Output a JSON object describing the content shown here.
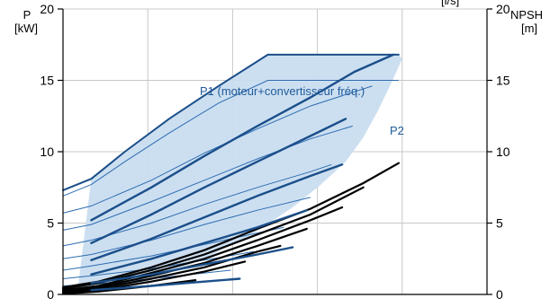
{
  "chart_data": {
    "type": "line",
    "title": "",
    "top_right_fragment": "[l/s]",
    "left_axis": {
      "label": "P",
      "unit": "[kW]",
      "ylim": [
        0,
        20
      ],
      "ticks": [
        0,
        5,
        10,
        15,
        20
      ]
    },
    "right_axis": {
      "label": "NPSH",
      "unit": "[m]",
      "ylim": [
        0,
        20
      ],
      "ticks": [
        0,
        5,
        10,
        15,
        20
      ]
    },
    "xlim": [
      0,
      24
    ],
    "grid_x": [
      0,
      4.8,
      9.6,
      14.4,
      19.2,
      24
    ],
    "grid": true,
    "annotations": {
      "p1": "P1 (moteur+convertisseur fréq.)",
      "p2": "P2"
    },
    "colors": {
      "p1": "#1b4f8a",
      "p2": "#2e6db0",
      "envelope": "#c9ddf0",
      "npsh": "#000000",
      "grid": "#c8c8c8",
      "axis": "#000000",
      "annotation": "#1f5b9a"
    },
    "envelope": {
      "upper": [
        [
          1.6,
          8.1
        ],
        [
          3.5,
          10.0
        ],
        [
          6.0,
          12.3
        ],
        [
          8.8,
          14.6
        ],
        [
          11.6,
          16.8
        ],
        [
          19.0,
          16.8
        ],
        [
          19.2,
          16.5
        ],
        [
          18.5,
          14.6
        ],
        [
          17.8,
          12.8
        ],
        [
          17.0,
          11.0
        ],
        [
          16.0,
          9.3
        ],
        [
          14.6,
          7.7
        ],
        [
          13.0,
          6.1
        ],
        [
          10.7,
          4.2
        ],
        [
          8.0,
          2.5
        ],
        [
          5.0,
          1.0
        ],
        [
          2.0,
          0.2
        ],
        [
          0.8,
          0.0
        ]
      ],
      "lower": []
    },
    "p1_series": [
      {
        "x": [
          0.0,
          1.6,
          3.5,
          6.0,
          8.8,
          11.6
        ],
        "y": [
          7.3,
          8.1,
          10.0,
          12.3,
          14.6,
          16.8
        ]
      },
      {
        "x": [
          11.6,
          19.0
        ],
        "y": [
          16.8,
          16.8
        ]
      },
      {
        "x": [
          1.6,
          5.0,
          8.0,
          11.0,
          14.0,
          16.5,
          18.7
        ],
        "y": [
          5.2,
          7.5,
          9.7,
          11.8,
          13.8,
          15.6,
          16.8
        ]
      },
      {
        "x": [
          1.6,
          5.0,
          8.0,
          11.0,
          14.0,
          16.0
        ],
        "y": [
          3.6,
          5.6,
          7.5,
          9.3,
          11.1,
          12.3
        ]
      },
      {
        "x": [
          1.6,
          5.0,
          8.0,
          11.0,
          14.0,
          15.8
        ],
        "y": [
          2.4,
          3.9,
          5.4,
          6.9,
          8.3,
          9.1
        ]
      },
      {
        "x": [
          1.6,
          5.0,
          8.0,
          11.0,
          13.8
        ],
        "y": [
          1.4,
          2.5,
          3.6,
          4.7,
          5.9
        ]
      },
      {
        "x": [
          1.6,
          5.0,
          8.0,
          11.0,
          13.0
        ],
        "y": [
          0.8,
          1.4,
          2.1,
          2.8,
          3.3
        ]
      },
      {
        "x": [
          1.6,
          5.0,
          8.0,
          10.0
        ],
        "y": [
          0.3,
          0.6,
          0.9,
          1.1
        ]
      }
    ],
    "p2_series": [
      {
        "x": [
          0.0,
          1.6,
          3.5,
          6.0,
          8.8,
          11.6,
          19.0
        ],
        "y": [
          6.9,
          7.7,
          9.3,
          11.3,
          13.4,
          15.0,
          15.0
        ]
      },
      {
        "x": [
          0.0,
          1.6,
          5.0,
          8.0,
          11.0,
          14.0,
          17.5
        ],
        "y": [
          5.7,
          6.2,
          8.0,
          9.9,
          11.6,
          13.2,
          14.6
        ]
      },
      {
        "x": [
          0.0,
          1.6,
          5.0,
          8.0,
          11.0,
          14.0,
          16.4
        ],
        "y": [
          4.5,
          4.9,
          6.5,
          8.0,
          9.5,
          10.9,
          11.8
        ]
      },
      {
        "x": [
          0.0,
          1.6,
          5.0,
          8.0,
          11.0,
          14.0,
          15.2
        ],
        "y": [
          3.4,
          3.8,
          5.0,
          6.3,
          7.5,
          8.6,
          9.1
        ]
      },
      {
        "x": [
          0.0,
          1.6,
          5.0,
          8.0,
          11.0,
          14.0
        ],
        "y": [
          2.5,
          2.8,
          3.8,
          4.9,
          5.9,
          6.8
        ]
      },
      {
        "x": [
          0.0,
          1.6,
          5.0,
          8.0,
          11.0,
          12.5
        ],
        "y": [
          1.7,
          2.0,
          2.7,
          3.5,
          4.3,
          4.7
        ]
      },
      {
        "x": [
          0.0,
          1.6,
          5.0,
          8.0,
          10.8
        ],
        "y": [
          1.1,
          1.3,
          1.8,
          2.4,
          3.0
        ]
      },
      {
        "x": [
          0.0,
          1.6,
          5.0,
          8.0,
          9.5
        ],
        "y": [
          0.6,
          0.7,
          1.1,
          1.5,
          1.7
        ]
      }
    ],
    "npsh_series": [
      {
        "x": [
          0.0,
          2.0,
          5.0,
          8.0,
          11.0,
          14.0,
          17.0,
          19.0
        ],
        "y": [
          0.5,
          0.9,
          1.9,
          3.1,
          4.6,
          6.0,
          7.8,
          9.2
        ]
      },
      {
        "x": [
          0.0,
          2.0,
          5.0,
          8.0,
          11.0,
          14.0,
          17.0
        ],
        "y": [
          0.4,
          0.8,
          1.7,
          2.8,
          4.2,
          5.6,
          7.5
        ]
      },
      {
        "x": [
          0.0,
          2.0,
          5.0,
          8.0,
          11.0,
          14.0,
          15.8
        ],
        "y": [
          0.3,
          0.6,
          1.5,
          2.5,
          3.8,
          5.2,
          6.1
        ]
      },
      {
        "x": [
          0.0,
          2.0,
          5.0,
          8.0,
          11.0,
          13.8
        ],
        "y": [
          0.2,
          0.5,
          1.3,
          2.2,
          3.4,
          4.6
        ]
      },
      {
        "x": [
          0.0,
          2.0,
          5.0,
          8.0,
          11.0,
          12.3
        ],
        "y": [
          0.15,
          0.4,
          1.1,
          1.9,
          3.0,
          3.4
        ]
      },
      {
        "x": [
          0.0,
          2.0,
          5.0,
          8.0,
          10.3
        ],
        "y": [
          0.1,
          0.3,
          0.9,
          1.6,
          2.3
        ]
      },
      {
        "x": [
          0.0,
          2.0,
          5.0,
          7.5
        ],
        "y": [
          0.05,
          0.2,
          0.6,
          1.0
        ]
      }
    ]
  }
}
